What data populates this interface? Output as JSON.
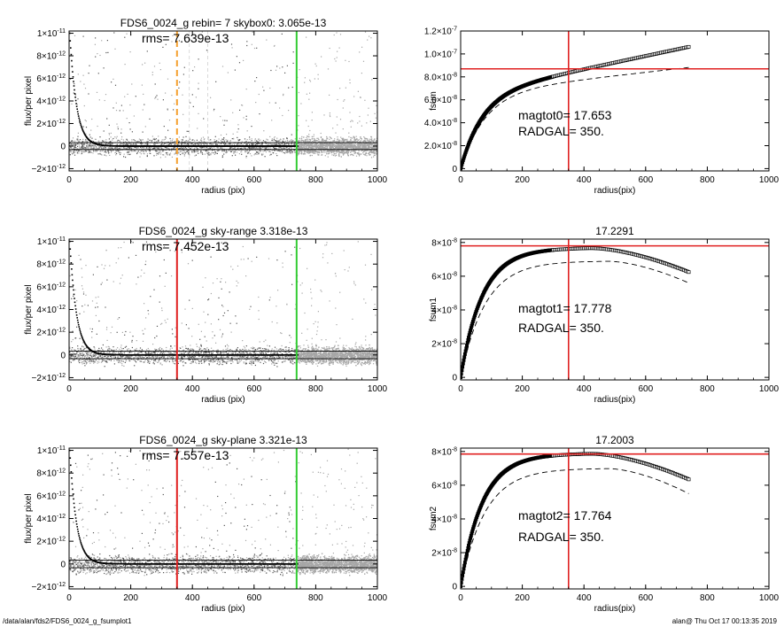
{
  "footer": {
    "left": "/data/alan/fds2/FDS6_0024_g_fsumplot1",
    "right": "alan@  Thu Oct 17 00:13:35 2019"
  },
  "colors": {
    "scatter": "#a6a6a6",
    "profile": "#000000",
    "vline_orange": "#f5a030",
    "vline_red": "#e02020",
    "vline_green": "#33cc33",
    "hline_red": "#e02020"
  },
  "chart_data": [
    {
      "id": "flux-1",
      "type": "scatter",
      "title": "FDS6_0024_g rebin= 7    skybox0:  3.065e-13",
      "rms_label": "rms= 7.639e-13",
      "xlabel": "radius (pix)",
      "ylabel": "flux/per pixel",
      "xlim": [
        0,
        1000
      ],
      "ylim": [
        -2.2e-12,
        1.02e-11
      ],
      "xticks": [
        0,
        200,
        400,
        600,
        800,
        1000
      ],
      "xtick_labels": [
        "0",
        "200",
        "400",
        "600",
        "800",
        "1000"
      ],
      "yticks": [
        -2e-12,
        0,
        2e-12,
        4e-12,
        6e-12,
        8e-12,
        1e-11
      ],
      "ytick_labels": [
        {
          "m": "−2×10",
          "e": "-12"
        },
        {
          "m": "0",
          "e": ""
        },
        {
          "m": "2×10",
          "e": "-12"
        },
        {
          "m": "4×10",
          "e": "-12"
        },
        {
          "m": "6×10",
          "e": "-12"
        },
        {
          "m": "8×10",
          "e": "-12"
        },
        {
          "m": "1×10",
          "e": "-11"
        }
      ],
      "hlines": [
        3.065e-13,
        -3.065e-13
      ],
      "vlines": [
        {
          "x": 350,
          "style": "orange-dashed"
        },
        {
          "x": 738,
          "style": "green"
        }
      ],
      "faint_vlines": [
        390,
        450
      ],
      "profile": {
        "amplitude": 1e-11,
        "scale": 21.5,
        "offset": 0,
        "x_end": 740
      },
      "scatter_band": {
        "x_max": 1000,
        "y_sigma": 7.6e-13,
        "seed": 11
      }
    },
    {
      "id": "fsum-0",
      "type": "line",
      "title": "",
      "xlabel": "radius(pix)",
      "ylabel": "fsum",
      "xlim": [
        0,
        1000
      ],
      "ylim": [
        -2e-09,
        1.2e-07
      ],
      "xticks": [
        0,
        200,
        400,
        600,
        800,
        1000
      ],
      "xtick_labels": [
        "0",
        "200",
        "400",
        "600",
        "800",
        "1000"
      ],
      "yticks": [
        0,
        2e-08,
        4e-08,
        6e-08,
        8e-08,
        1e-07,
        1.2e-07
      ],
      "ytick_labels": [
        {
          "m": "0",
          "e": ""
        },
        {
          "m": "2.0×10",
          "e": "-8"
        },
        {
          "m": "4.0×10",
          "e": "-8"
        },
        {
          "m": "6.0×10",
          "e": "-8"
        },
        {
          "m": "8.0×10",
          "e": "-8"
        },
        {
          "m": "1.0×10",
          "e": "-7"
        },
        {
          "m": "1.2×10",
          "e": "-7"
        }
      ],
      "vline_x": 350,
      "hline_y": 8.7e-08,
      "magtot_label": "magtot0=  17.653",
      "radgal_label": "RADGAL=    350.",
      "curve": {
        "asym": 6.4e-08,
        "scale": 70,
        "linear": 5.7e-11,
        "peak_x": 5000,
        "decline": 0,
        "x_end": 740
      },
      "dashed": {
        "asym": 6.6e-08,
        "scale": 80,
        "linear": 3e-11,
        "peak_x": 5000,
        "decline": 0,
        "x_end": 740
      }
    },
    {
      "id": "flux-2",
      "type": "scatter",
      "title": "FDS6_0024_g sky-range  3.318e-13",
      "rms_label": "rms= 7.452e-13",
      "xlabel": "radius (pix)",
      "ylabel": "flux/per pixel",
      "xlim": [
        0,
        1000
      ],
      "ylim": [
        -2.2e-12,
        1.02e-11
      ],
      "xticks": [
        0,
        200,
        400,
        600,
        800,
        1000
      ],
      "xtick_labels": [
        "0",
        "200",
        "400",
        "600",
        "800",
        "1000"
      ],
      "yticks": [
        -2e-12,
        0,
        2e-12,
        4e-12,
        6e-12,
        8e-12,
        1e-11
      ],
      "ytick_labels": [
        {
          "m": "−2×10",
          "e": "-12"
        },
        {
          "m": "0",
          "e": ""
        },
        {
          "m": "2×10",
          "e": "-12"
        },
        {
          "m": "4×10",
          "e": "-12"
        },
        {
          "m": "6×10",
          "e": "-12"
        },
        {
          "m": "8×10",
          "e": "-12"
        },
        {
          "m": "1×10",
          "e": "-11"
        }
      ],
      "hlines": [
        3.318e-13,
        -3.318e-13
      ],
      "vlines": [
        {
          "x": 350,
          "style": "red"
        },
        {
          "x": 738,
          "style": "green"
        }
      ],
      "faint_vlines": [],
      "profile": {
        "amplitude": 1e-11,
        "scale": 21.5,
        "offset": 0,
        "x_end": 740
      },
      "scatter_band": {
        "x_max": 1000,
        "y_sigma": 7.45e-13,
        "seed": 23
      }
    },
    {
      "id": "fsum-1",
      "type": "line",
      "title": "17.2291",
      "xlabel": "radius(pix)",
      "ylabel": "fsum1",
      "xlim": [
        0,
        1000
      ],
      "ylim": [
        -1.5e-09,
        8.2e-08
      ],
      "xticks": [
        0,
        200,
        400,
        600,
        800,
        1000
      ],
      "xtick_labels": [
        "0",
        "200",
        "400",
        "600",
        "800",
        "1000"
      ],
      "yticks": [
        0,
        2e-08,
        4e-08,
        6e-08,
        8e-08
      ],
      "ytick_labels": [
        {
          "m": "0",
          "e": ""
        },
        {
          "m": "2×10",
          "e": "-8"
        },
        {
          "m": "4×10",
          "e": "-8"
        },
        {
          "m": "6×10",
          "e": "-8"
        },
        {
          "m": "8×10",
          "e": "-8"
        }
      ],
      "vline_x": 350,
      "hline_y": 7.8e-08,
      "magtot_label": "magtot1=  17.778",
      "radgal_label": "RADGAL=    350.",
      "curve": {
        "asym": 7.6e-08,
        "scale": 70,
        "linear": 2e-12,
        "peak_x": 420,
        "decline": 1.5e-08,
        "x_end": 740
      },
      "dashed": {
        "asym": 6.9e-08,
        "scale": 80,
        "linear": 0,
        "peak_x": 480,
        "decline": 1.3e-08,
        "x_end": 740
      }
    },
    {
      "id": "flux-3",
      "type": "scatter",
      "title": "FDS6_0024_g sky-plane  3.321e-13",
      "rms_label": "rms= 7.557e-13",
      "xlabel": "radius (pix)",
      "ylabel": "flux/per pixel",
      "xlim": [
        0,
        1000
      ],
      "ylim": [
        -2.2e-12,
        1.02e-11
      ],
      "xticks": [
        0,
        200,
        400,
        600,
        800,
        1000
      ],
      "xtick_labels": [
        "0",
        "200",
        "400",
        "600",
        "800",
        "1000"
      ],
      "yticks": [
        -2e-12,
        0,
        2e-12,
        4e-12,
        6e-12,
        8e-12,
        1e-11
      ],
      "ytick_labels": [
        {
          "m": "−2×10",
          "e": "-12"
        },
        {
          "m": "0",
          "e": ""
        },
        {
          "m": "2×10",
          "e": "-12"
        },
        {
          "m": "4×10",
          "e": "-12"
        },
        {
          "m": "6×10",
          "e": "-12"
        },
        {
          "m": "8×10",
          "e": "-12"
        },
        {
          "m": "1×10",
          "e": "-11"
        }
      ],
      "hlines": [
        3.321e-13,
        -3.321e-13
      ],
      "vlines": [
        {
          "x": 350,
          "style": "red"
        },
        {
          "x": 738,
          "style": "green"
        }
      ],
      "faint_vlines": [],
      "profile": {
        "amplitude": 1e-11,
        "scale": 21.5,
        "offset": 0,
        "x_end": 740
      },
      "scatter_band": {
        "x_max": 1000,
        "y_sigma": 7.55e-13,
        "seed": 37
      }
    },
    {
      "id": "fsum-2",
      "type": "line",
      "title": "17.2003",
      "xlabel": "radius(pix)",
      "ylabel": "fsum2",
      "xlim": [
        0,
        1000
      ],
      "ylim": [
        -1.5e-09,
        8.2e-08
      ],
      "xticks": [
        0,
        200,
        400,
        600,
        800,
        1000
      ],
      "xtick_labels": [
        "0",
        "200",
        "400",
        "600",
        "800",
        "1000"
      ],
      "yticks": [
        0,
        2e-08,
        4e-08,
        6e-08,
        8e-08
      ],
      "ytick_labels": [
        {
          "m": "0",
          "e": ""
        },
        {
          "m": "2×10",
          "e": "-8"
        },
        {
          "m": "4×10",
          "e": "-8"
        },
        {
          "m": "6×10",
          "e": "-8"
        },
        {
          "m": "8×10",
          "e": "-8"
        }
      ],
      "vline_x": 350,
      "hline_y": 7.85e-08,
      "magtot_label": "magtot2=  17.764",
      "radgal_label": "RADGAL=    350.",
      "curve": {
        "asym": 7.8e-08,
        "scale": 70,
        "linear": 2e-12,
        "peak_x": 420,
        "decline": 1.6e-08,
        "x_end": 740
      },
      "dashed": {
        "asym": 7e-08,
        "scale": 80,
        "linear": 0,
        "peak_x": 480,
        "decline": 1.5e-08,
        "x_end": 740
      }
    }
  ]
}
